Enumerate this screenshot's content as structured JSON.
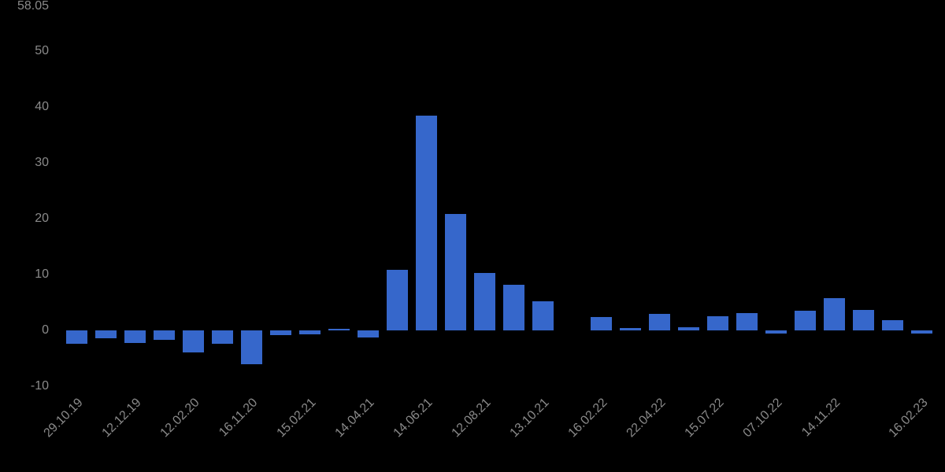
{
  "colors": {
    "background": "#000000",
    "bar": "#3667cb",
    "axis_text": "#8a8a8a"
  },
  "chart_data": {
    "type": "bar",
    "title": "",
    "xlabel": "",
    "ylabel": "",
    "grid": false,
    "legend": false,
    "background": "black",
    "y_axis": {
      "tick_labels": [
        "58.05",
        "50",
        "40",
        "30",
        "20",
        "10",
        "0",
        "-10"
      ],
      "tick_values": [
        58.05,
        50,
        40,
        30,
        20,
        10,
        0,
        -10
      ],
      "ylim": [
        -12,
        58.05
      ]
    },
    "x_axis": {
      "tick_labels": [
        "29.10.19",
        "12.12.19",
        "12.02.20",
        "16.11.20",
        "15.02.21",
        "14.04.21",
        "14.06.21",
        "12.08.21",
        "13.10.21",
        "16.02.22",
        "22.04.22",
        "15.07.22",
        "07.10.22",
        "14.11.22",
        "16.02.23"
      ],
      "tick_bar_indices": [
        0,
        2,
        4,
        6,
        8,
        10,
        12,
        14,
        16,
        18,
        20,
        22,
        24,
        26,
        29
      ],
      "label_rotation_deg": -45
    },
    "values": [
      -2.35,
      -1.45,
      -2.25,
      -1.7,
      -3.9,
      -2.35,
      -6.0,
      -0.85,
      -0.75,
      0.25,
      -1.2,
      10.8,
      38.4,
      20.9,
      10.3,
      8.2,
      5.2,
      0,
      2.35,
      0.4,
      2.95,
      0.55,
      2.6,
      3.05,
      -0.5,
      3.5,
      5.75,
      3.6,
      1.8,
      -0.5
    ],
    "bar_count": 30
  }
}
